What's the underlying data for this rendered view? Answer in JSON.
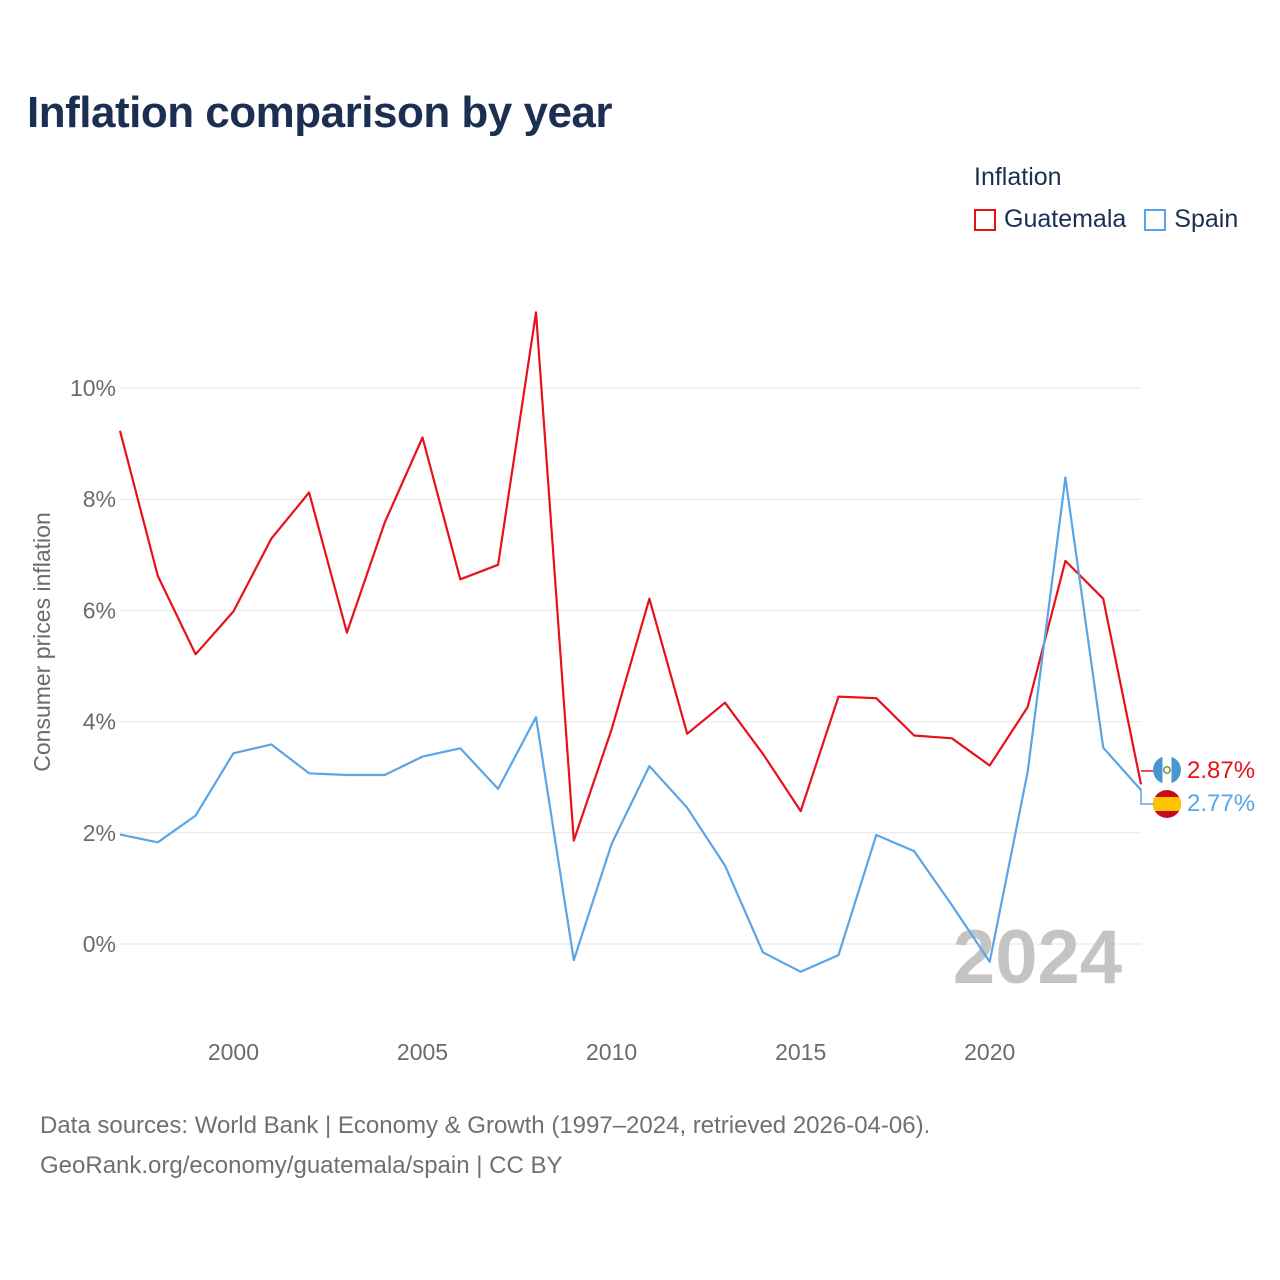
{
  "title": "Inflation comparison by year",
  "legend": {
    "title": "Inflation",
    "items": [
      {
        "name": "Guatemala",
        "color": "#e8111a"
      },
      {
        "name": "Spain",
        "color": "#5aa5e6"
      }
    ]
  },
  "footer": {
    "line1": "Data sources: World Bank | Economy & Growth (1997–2024, retrieved 2026-04-06).",
    "line2": "GeoRank.org/economy/guatemala/spain | CC BY"
  },
  "watermark": "2024",
  "chart_data": {
    "type": "line",
    "title": "Inflation comparison by year",
    "xlabel": "",
    "ylabel": "Consumer prices inflation",
    "x": [
      1997,
      1998,
      1999,
      2000,
      2001,
      2002,
      2003,
      2004,
      2005,
      2006,
      2007,
      2008,
      2009,
      2010,
      2011,
      2012,
      2013,
      2014,
      2015,
      2016,
      2017,
      2018,
      2019,
      2020,
      2021,
      2022,
      2023,
      2024
    ],
    "xlim": [
      1997,
      2024
    ],
    "ylim": [
      -1.3,
      12.5
    ],
    "xticks": [
      2000,
      2005,
      2010,
      2015,
      2020
    ],
    "xtick_labels": [
      "2000",
      "2005",
      "2010",
      "2015",
      "2020"
    ],
    "yticks": [
      0,
      2,
      4,
      6,
      8,
      10
    ],
    "ytick_labels": [
      "0%",
      "2%",
      "4%",
      "6%",
      "8%",
      "10%"
    ],
    "grid": true,
    "legend_position": "top-right",
    "series": [
      {
        "name": "Guatemala",
        "color": "#e8111a",
        "end_label": "2.87%",
        "values": [
          9.23,
          6.62,
          5.21,
          5.98,
          7.29,
          8.12,
          5.6,
          7.58,
          9.11,
          6.56,
          6.82,
          11.36,
          1.86,
          3.86,
          6.21,
          3.78,
          4.34,
          3.42,
          2.39,
          4.45,
          4.42,
          3.75,
          3.7,
          3.21,
          4.26,
          6.89,
          6.21,
          2.87
        ]
      },
      {
        "name": "Spain",
        "color": "#5aa5e6",
        "end_label": "2.77%",
        "values": [
          1.97,
          1.83,
          2.31,
          3.43,
          3.59,
          3.07,
          3.04,
          3.04,
          3.37,
          3.52,
          2.79,
          4.08,
          -0.29,
          1.8,
          3.2,
          2.45,
          1.41,
          -0.15,
          -0.5,
          -0.2,
          1.96,
          1.67,
          0.7,
          -0.32,
          3.09,
          8.39,
          3.53,
          2.77
        ]
      }
    ]
  }
}
